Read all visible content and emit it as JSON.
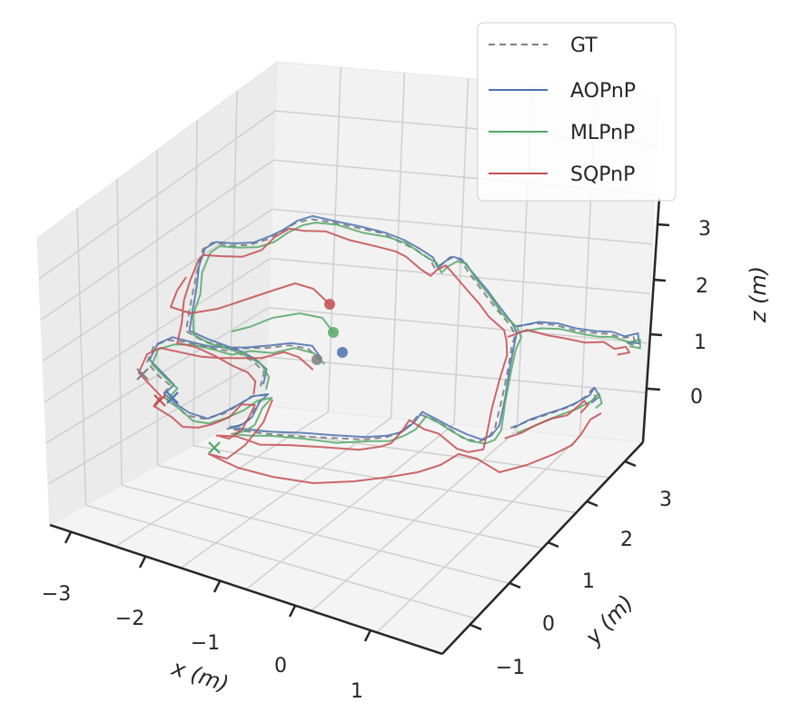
{
  "chart_data": {
    "type": "line3d",
    "title": "",
    "xlabel": "x (m)",
    "ylabel": "y (m)",
    "zlabel": "z (m)",
    "xlim": [
      -3.3,
      1.8
    ],
    "ylim": [
      -1.5,
      3.5
    ],
    "zlim": [
      -0.6,
      3.5
    ],
    "x_ticks": [
      "−3",
      "−2",
      "−1",
      "0",
      "1"
    ],
    "y_ticks": [
      "−1",
      "0",
      "1",
      "2",
      "3"
    ],
    "z_ticks": [
      "0",
      "1",
      "2",
      "3"
    ],
    "grid": true,
    "legend_position": "top-right",
    "series": [
      {
        "name": "GT",
        "color": "#808080",
        "style": "dashed",
        "start_marker": "circle",
        "end_marker": "x"
      },
      {
        "name": "AOPnP",
        "color": "#4c72b0",
        "style": "solid",
        "start_marker": "circle",
        "end_marker": "x"
      },
      {
        "name": "MLPnP",
        "color": "#55a868",
        "style": "solid",
        "start_marker": "circle",
        "end_marker": "x"
      },
      {
        "name": "SQPnP",
        "color": "#c44e52",
        "style": "solid",
        "start_marker": "circle",
        "end_marker": "x"
      }
    ]
  }
}
